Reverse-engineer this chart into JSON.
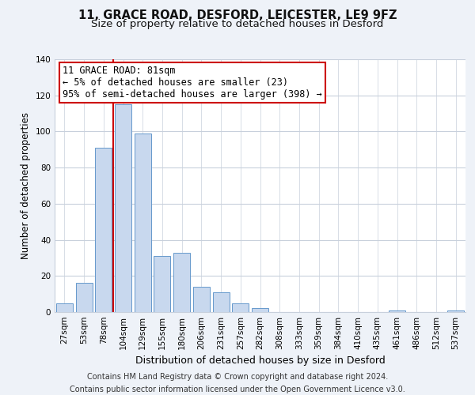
{
  "title": "11, GRACE ROAD, DESFORD, LEICESTER, LE9 9FZ",
  "subtitle": "Size of property relative to detached houses in Desford",
  "xlabel": "Distribution of detached houses by size in Desford",
  "ylabel": "Number of detached properties",
  "bar_labels": [
    "27sqm",
    "53sqm",
    "78sqm",
    "104sqm",
    "129sqm",
    "155sqm",
    "180sqm",
    "206sqm",
    "231sqm",
    "257sqm",
    "282sqm",
    "308sqm",
    "333sqm",
    "359sqm",
    "384sqm",
    "410sqm",
    "435sqm",
    "461sqm",
    "486sqm",
    "512sqm",
    "537sqm"
  ],
  "bar_values": [
    5,
    16,
    91,
    115,
    99,
    31,
    33,
    14,
    11,
    5,
    2,
    0,
    0,
    0,
    0,
    0,
    0,
    1,
    0,
    0,
    1
  ],
  "bar_color": "#c8d8ee",
  "bar_edge_color": "#6699cc",
  "vline_color": "#cc0000",
  "vline_x_index": 2.5,
  "annotation_text": "11 GRACE ROAD: 81sqm\n← 5% of detached houses are smaller (23)\n95% of semi-detached houses are larger (398) →",
  "annotation_box_facecolor": "#ffffff",
  "annotation_box_edgecolor": "#cc0000",
  "ylim": [
    0,
    140
  ],
  "yticks": [
    0,
    20,
    40,
    60,
    80,
    100,
    120,
    140
  ],
  "footer_text": "Contains HM Land Registry data © Crown copyright and database right 2024.\nContains public sector information licensed under the Open Government Licence v3.0.",
  "bg_color": "#eef2f8",
  "plot_bg_color": "#ffffff",
  "grid_color": "#c8d0dc",
  "title_fontsize": 10.5,
  "subtitle_fontsize": 9.5,
  "xlabel_fontsize": 9,
  "ylabel_fontsize": 8.5,
  "tick_fontsize": 7.5,
  "annotation_fontsize": 8.5,
  "footer_fontsize": 7
}
